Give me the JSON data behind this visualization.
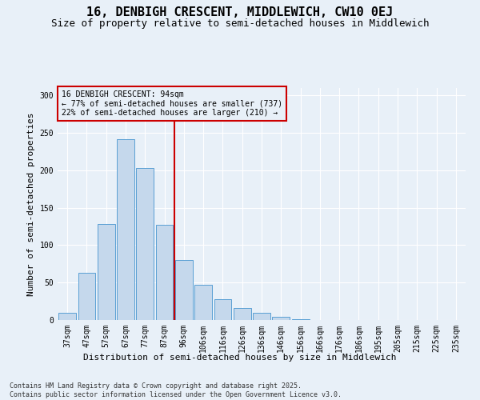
{
  "title": "16, DENBIGH CRESCENT, MIDDLEWICH, CW10 0EJ",
  "subtitle": "Size of property relative to semi-detached houses in Middlewich",
  "xlabel": "Distribution of semi-detached houses by size in Middlewich",
  "ylabel": "Number of semi-detached properties",
  "categories": [
    "37sqm",
    "47sqm",
    "57sqm",
    "67sqm",
    "77sqm",
    "87sqm",
    "96sqm",
    "106sqm",
    "116sqm",
    "126sqm",
    "136sqm",
    "146sqm",
    "156sqm",
    "166sqm",
    "176sqm",
    "186sqm",
    "195sqm",
    "205sqm",
    "215sqm",
    "225sqm",
    "235sqm"
  ],
  "values": [
    10,
    63,
    128,
    242,
    203,
    127,
    80,
    47,
    28,
    16,
    10,
    4,
    1,
    0,
    0,
    0,
    0,
    0,
    0,
    0,
    0
  ],
  "bar_color": "#c5d8ec",
  "bar_edge_color": "#5a9fd4",
  "vline_x_index": 6,
  "vline_color": "#cc0000",
  "annotation_title": "16 DENBIGH CRESCENT: 94sqm",
  "annotation_line1": "← 77% of semi-detached houses are smaller (737)",
  "annotation_line2": "22% of semi-detached houses are larger (210) →",
  "annotation_box_color": "#cc0000",
  "ylim": [
    0,
    310
  ],
  "yticks": [
    0,
    50,
    100,
    150,
    200,
    250,
    300
  ],
  "background_color": "#e8f0f8",
  "grid_color": "#ffffff",
  "footer": "Contains HM Land Registry data © Crown copyright and database right 2025.\nContains public sector information licensed under the Open Government Licence v3.0.",
  "title_fontsize": 11,
  "subtitle_fontsize": 9,
  "ylabel_fontsize": 8,
  "xlabel_fontsize": 8,
  "tick_fontsize": 7,
  "annotation_fontsize": 7,
  "footer_fontsize": 6
}
